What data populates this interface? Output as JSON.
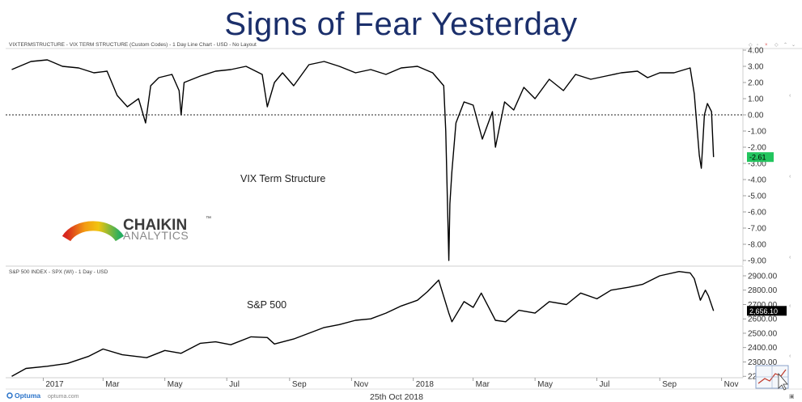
{
  "slide_title": "Signs of Fear Yesterday",
  "footer": {
    "brand": "Optuma",
    "site": "optuma.com",
    "date": "25th Oct 2018"
  },
  "logo": {
    "name": "CHAIKIN",
    "tm": "™",
    "sub": "ANALYTICS"
  },
  "colors": {
    "line": "#000000",
    "last_value_upper": "#22c55e",
    "last_value_lower": "#000000",
    "title": "#1b2f6b"
  },
  "chart_data": [
    {
      "type": "line",
      "header": "VIXTERMSTRUCTURE - VIX TERM STRUCTURE (Custom Codes) - 1 Day Line Chart - USD - No Layout",
      "annotation": "VIX Term Structure",
      "ylim": [
        -9.3,
        4.1
      ],
      "yticks": [
        4.0,
        3.0,
        2.0,
        1.0,
        0.0,
        -1.0,
        -2.0,
        -3.0,
        -4.0,
        -5.0,
        -6.0,
        -7.0,
        -8.0,
        -9.0
      ],
      "ytick_labels": [
        "4.00",
        "3.00",
        "2.00",
        "1.00",
        "0.00",
        "-1.00",
        "-2.00",
        "-3.00",
        "-4.00",
        "-5.00",
        "-6.00",
        "-7.00",
        "-8.00",
        "-9.00"
      ],
      "reference_line": 0,
      "last_value": -2.61,
      "last_value_label": "-2.61",
      "x": [
        "2016-12-01",
        "2016-12-20",
        "2017-01-05",
        "2017-01-20",
        "2017-02-05",
        "2017-02-20",
        "2017-03-05",
        "2017-03-15",
        "2017-03-25",
        "2017-04-05",
        "2017-04-12",
        "2017-04-17",
        "2017-04-25",
        "2017-05-08",
        "2017-05-15",
        "2017-05-17",
        "2017-05-20",
        "2017-06-05",
        "2017-06-20",
        "2017-07-05",
        "2017-07-20",
        "2017-08-05",
        "2017-08-10",
        "2017-08-17",
        "2017-08-25",
        "2017-09-05",
        "2017-09-20",
        "2017-10-05",
        "2017-10-20",
        "2017-11-05",
        "2017-11-20",
        "2017-12-05",
        "2017-12-20",
        "2018-01-05",
        "2018-01-20",
        "2018-01-31",
        "2018-02-02",
        "2018-02-05",
        "2018-02-06",
        "2018-02-08",
        "2018-02-12",
        "2018-02-20",
        "2018-03-01",
        "2018-03-10",
        "2018-03-20",
        "2018-03-23",
        "2018-04-01",
        "2018-04-10",
        "2018-04-20",
        "2018-05-01",
        "2018-05-15",
        "2018-05-29",
        "2018-06-10",
        "2018-06-25",
        "2018-07-10",
        "2018-07-25",
        "2018-08-10",
        "2018-08-20",
        "2018-09-01",
        "2018-09-15",
        "2018-10-01",
        "2018-10-05",
        "2018-10-10",
        "2018-10-12",
        "2018-10-15",
        "2018-10-18",
        "2018-10-22",
        "2018-10-24"
      ],
      "values": [
        2.8,
        3.3,
        3.4,
        3.0,
        2.9,
        2.6,
        2.7,
        1.2,
        0.5,
        1.0,
        -0.5,
        1.8,
        2.3,
        2.5,
        1.5,
        0.0,
        2.0,
        2.4,
        2.7,
        2.8,
        3.0,
        2.5,
        0.5,
        2.0,
        2.6,
        1.8,
        3.1,
        3.3,
        3.0,
        2.6,
        2.8,
        2.5,
        2.9,
        3.0,
        2.6,
        1.8,
        -1.0,
        -9.0,
        -5.5,
        -3.5,
        -0.5,
        0.8,
        0.6,
        -1.5,
        0.2,
        -2.0,
        0.8,
        0.3,
        1.7,
        1.0,
        2.2,
        1.5,
        2.5,
        2.2,
        2.4,
        2.6,
        2.7,
        2.3,
        2.6,
        2.6,
        2.9,
        1.3,
        -2.5,
        -3.3,
        0.0,
        0.7,
        0.2,
        -2.61
      ]
    },
    {
      "type": "line",
      "header": "S&P 500 INDEX - SPX (WI) - 1 Day - USD",
      "annotation": "S&P 500",
      "ylim": [
        2190,
        2945
      ],
      "yticks": [
        2900,
        2800,
        2700,
        2600,
        2500,
        2400,
        2300,
        2200
      ],
      "ytick_labels": [
        "2900.00",
        "2800.00",
        "2700.00",
        "2600.00",
        "2500.00",
        "2400.00",
        "2300.00",
        "2200.00"
      ],
      "last_value": 2656.1,
      "last_value_label": "2,656.10",
      "x": [
        "2016-12-01",
        "2016-12-15",
        "2017-01-05",
        "2017-01-25",
        "2017-02-15",
        "2017-03-01",
        "2017-03-20",
        "2017-04-13",
        "2017-05-01",
        "2017-05-17",
        "2017-06-05",
        "2017-06-20",
        "2017-07-05",
        "2017-07-25",
        "2017-08-10",
        "2017-08-17",
        "2017-09-05",
        "2017-09-20",
        "2017-10-05",
        "2017-10-20",
        "2017-11-05",
        "2017-11-20",
        "2017-12-05",
        "2017-12-20",
        "2018-01-05",
        "2018-01-15",
        "2018-01-26",
        "2018-02-05",
        "2018-02-08",
        "2018-02-20",
        "2018-03-01",
        "2018-03-09",
        "2018-03-23",
        "2018-04-02",
        "2018-04-15",
        "2018-05-01",
        "2018-05-15",
        "2018-06-01",
        "2018-06-15",
        "2018-07-01",
        "2018-07-15",
        "2018-08-01",
        "2018-08-15",
        "2018-09-01",
        "2018-09-20",
        "2018-10-01",
        "2018-10-05",
        "2018-10-11",
        "2018-10-16",
        "2018-10-19",
        "2018-10-24"
      ],
      "values": [
        2200,
        2255,
        2270,
        2290,
        2340,
        2390,
        2350,
        2330,
        2380,
        2360,
        2430,
        2440,
        2420,
        2475,
        2470,
        2425,
        2460,
        2500,
        2540,
        2560,
        2590,
        2600,
        2640,
        2690,
        2730,
        2790,
        2870,
        2640,
        2580,
        2720,
        2680,
        2780,
        2590,
        2580,
        2660,
        2640,
        2720,
        2700,
        2780,
        2740,
        2800,
        2820,
        2840,
        2900,
        2930,
        2920,
        2880,
        2730,
        2800,
        2760,
        2656
      ]
    }
  ],
  "x_axis": {
    "labels": [
      "2017",
      "Mar",
      "May",
      "Jul",
      "Sep",
      "Nov",
      "2018",
      "Mar",
      "May",
      "Jul",
      "Sep",
      "Nov"
    ],
    "dates": [
      "2017-01-01",
      "2017-03-01",
      "2017-05-01",
      "2017-07-01",
      "2017-09-01",
      "2017-11-01",
      "2018-01-01",
      "2018-03-01",
      "2018-05-01",
      "2018-07-01",
      "2018-09-01",
      "2018-11-01"
    ]
  }
}
